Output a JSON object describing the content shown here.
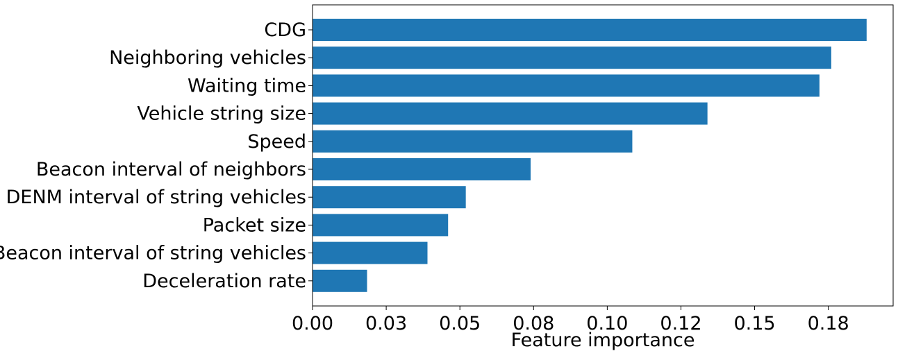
{
  "chart_data": {
    "type": "bar",
    "orientation": "horizontal",
    "xlabel": "Feature importance",
    "ylabel": "",
    "title": "",
    "xlim": [
      0,
      0.197
    ],
    "grid": false,
    "categories": [
      "CDG",
      "Neighboring vehicles",
      "Waiting time",
      "Vehicle string size",
      "Speed",
      "Beacon interval of neighbors",
      "DENM interval of string vehicles",
      "Packet size",
      "Beacon interval of string vehicles",
      "Deceleration rate"
    ],
    "values": [
      0.188,
      0.176,
      0.172,
      0.134,
      0.1085,
      0.074,
      0.052,
      0.046,
      0.039,
      0.0185
    ],
    "x_ticks": [
      0.0,
      0.025,
      0.05,
      0.075,
      0.1,
      0.125,
      0.15,
      0.175
    ],
    "x_tick_labels": [
      "0.00",
      "0.03",
      "0.05",
      "0.08",
      "0.10",
      "0.12",
      "0.15",
      "0.18"
    ],
    "bar_color": "#1f77b4"
  }
}
